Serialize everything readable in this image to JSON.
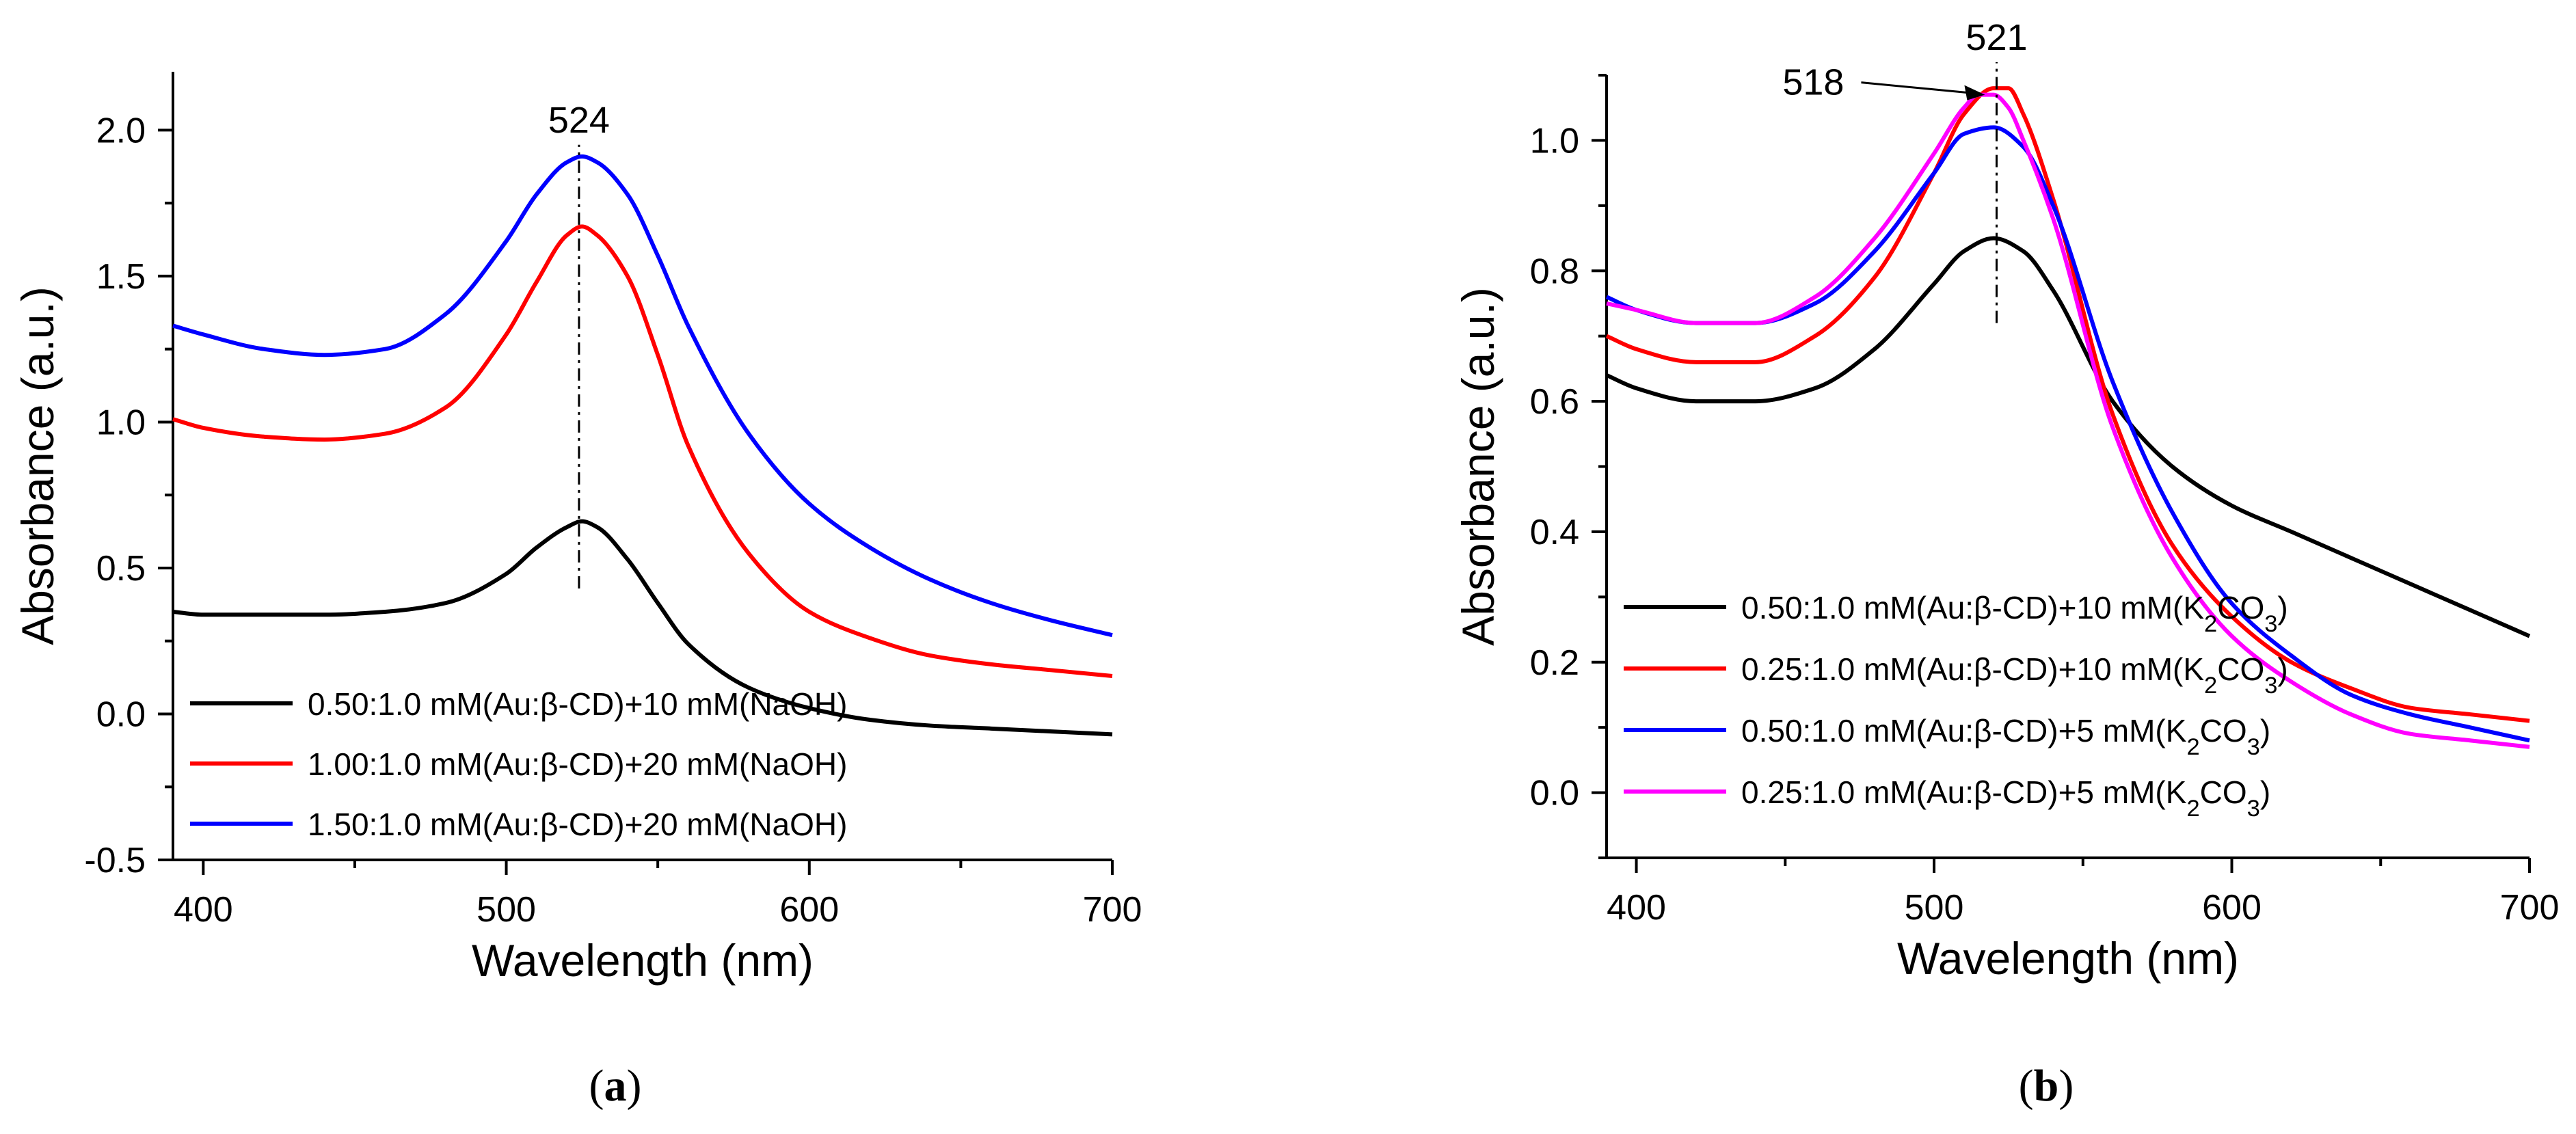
{
  "colors": {
    "black": "#000000",
    "red": "#ff0000",
    "blue": "#0000ff",
    "magenta": "#ff00ff"
  },
  "panels": [
    {
      "label": "(a)",
      "annotation_text": "524"
    },
    {
      "label": "(b)",
      "annotation_text": "521",
      "arrow_text": "518"
    }
  ],
  "chart_data": [
    {
      "type": "line",
      "panel": "(a)",
      "xlabel": "Wavelength (nm)",
      "ylabel": "Absorbance (a.u.)",
      "xlim": [
        390,
        700
      ],
      "ylim": [
        -0.5,
        2.2
      ],
      "xticks": [
        400,
        500,
        600,
        700
      ],
      "yticks": [
        -0.5,
        0.0,
        0.5,
        1.0,
        1.5,
        2.0
      ],
      "ytick_labels": [
        "-0.5",
        "0.0",
        "0.5",
        "1.0",
        "1.5",
        "2.0"
      ],
      "grid": false,
      "legend_position": "bottom-left",
      "annotation": {
        "x": 524,
        "label": "524",
        "y_range": [
          0.43,
          1.95
        ]
      },
      "series": [
        {
          "name": "0.50:1.0 mM(Au:β-CD)+10 mM(NaOH)",
          "color": "#000000",
          "x": [
            390,
            400,
            420,
            440,
            460,
            480,
            500,
            510,
            520,
            525,
            530,
            540,
            550,
            560,
            580,
            600,
            620,
            640,
            660,
            680,
            700
          ],
          "y": [
            0.35,
            0.34,
            0.34,
            0.34,
            0.35,
            0.38,
            0.48,
            0.57,
            0.64,
            0.66,
            0.64,
            0.53,
            0.38,
            0.24,
            0.09,
            0.02,
            -0.02,
            -0.04,
            -0.05,
            -0.06,
            -0.07
          ]
        },
        {
          "name": "1.00:1.0 mM(Au:β-CD)+20 mM(NaOH)",
          "color": "#ff0000",
          "x": [
            390,
            400,
            420,
            440,
            460,
            480,
            500,
            510,
            520,
            525,
            530,
            540,
            550,
            560,
            580,
            600,
            620,
            640,
            660,
            680,
            700
          ],
          "y": [
            1.01,
            0.98,
            0.95,
            0.94,
            0.96,
            1.05,
            1.3,
            1.48,
            1.64,
            1.67,
            1.64,
            1.5,
            1.23,
            0.92,
            0.55,
            0.35,
            0.26,
            0.2,
            0.17,
            0.15,
            0.13
          ]
        },
        {
          "name": "1.50:1.0 mM(Au:β-CD)+20 mM(NaOH)",
          "color": "#0000ff",
          "x": [
            390,
            400,
            420,
            440,
            460,
            480,
            500,
            510,
            520,
            525,
            530,
            540,
            550,
            560,
            580,
            600,
            620,
            640,
            660,
            680,
            700
          ],
          "y": [
            1.33,
            1.3,
            1.25,
            1.23,
            1.25,
            1.37,
            1.62,
            1.78,
            1.89,
            1.91,
            1.89,
            1.78,
            1.57,
            1.33,
            0.96,
            0.72,
            0.57,
            0.46,
            0.38,
            0.32,
            0.27
          ]
        }
      ]
    },
    {
      "type": "line",
      "panel": "(b)",
      "xlabel": "Wavelength (nm)",
      "ylabel": "Absorbance (a.u.)",
      "xlim": [
        390,
        700
      ],
      "ylim": [
        -0.1,
        1.1
      ],
      "xticks": [
        400,
        500,
        600,
        700
      ],
      "yticks": [
        0.0,
        0.2,
        0.4,
        0.6,
        0.8,
        1.0
      ],
      "ytick_labels": [
        "0.0",
        "0.2",
        "0.4",
        "0.6",
        "0.8",
        "1.0"
      ],
      "grid": false,
      "legend_position": "bottom-left",
      "annotation": {
        "x": 521,
        "label": "521",
        "y_range": [
          0.72,
          1.12
        ],
        "arrow_label": "518",
        "arrow_target": [
          518,
          1.07
        ]
      },
      "series": [
        {
          "name": "0.50:1.0 mM(Au:β-CD)+10 mM(K₂CO₃)",
          "color": "#000000",
          "x": [
            390,
            400,
            420,
            440,
            460,
            480,
            500,
            510,
            520,
            530,
            540,
            560,
            580,
            600,
            620,
            640,
            660,
            680,
            700
          ],
          "y": [
            0.64,
            0.62,
            0.6,
            0.6,
            0.62,
            0.68,
            0.78,
            0.83,
            0.85,
            0.83,
            0.77,
            0.6,
            0.5,
            0.44,
            0.4,
            0.36,
            0.32,
            0.28,
            0.24
          ]
        },
        {
          "name": "0.25:1.0 mM(Au:β-CD)+10 mM(K₂CO₃)",
          "color": "#ff0000",
          "x": [
            390,
            400,
            420,
            440,
            460,
            480,
            500,
            510,
            520,
            525,
            530,
            540,
            560,
            580,
            600,
            620,
            640,
            660,
            680,
            700
          ],
          "y": [
            0.7,
            0.68,
            0.66,
            0.66,
            0.7,
            0.79,
            0.95,
            1.04,
            1.08,
            1.08,
            1.04,
            0.91,
            0.58,
            0.38,
            0.27,
            0.2,
            0.16,
            0.13,
            0.12,
            0.11
          ]
        },
        {
          "name": "0.50:1.0 mM(Au:β-CD)+5 mM(K₂CO₃)",
          "color": "#0000ff",
          "x": [
            390,
            400,
            420,
            440,
            460,
            480,
            500,
            510,
            520,
            530,
            540,
            560,
            580,
            600,
            620,
            640,
            660,
            680,
            700
          ],
          "y": [
            0.76,
            0.74,
            0.72,
            0.72,
            0.75,
            0.83,
            0.95,
            1.01,
            1.02,
            0.99,
            0.9,
            0.63,
            0.43,
            0.29,
            0.21,
            0.15,
            0.12,
            0.1,
            0.08
          ]
        },
        {
          "name": "0.25:1.0 mM(Au:β-CD)+5 mM(K₂CO₃)",
          "color": "#ff00ff",
          "x": [
            390,
            400,
            420,
            440,
            460,
            480,
            500,
            510,
            515,
            520,
            525,
            530,
            540,
            560,
            580,
            600,
            620,
            640,
            660,
            680,
            700
          ],
          "y": [
            0.75,
            0.74,
            0.72,
            0.72,
            0.76,
            0.85,
            0.98,
            1.05,
            1.07,
            1.07,
            1.05,
            1.0,
            0.88,
            0.56,
            0.36,
            0.24,
            0.17,
            0.12,
            0.09,
            0.08,
            0.07
          ]
        }
      ]
    }
  ]
}
